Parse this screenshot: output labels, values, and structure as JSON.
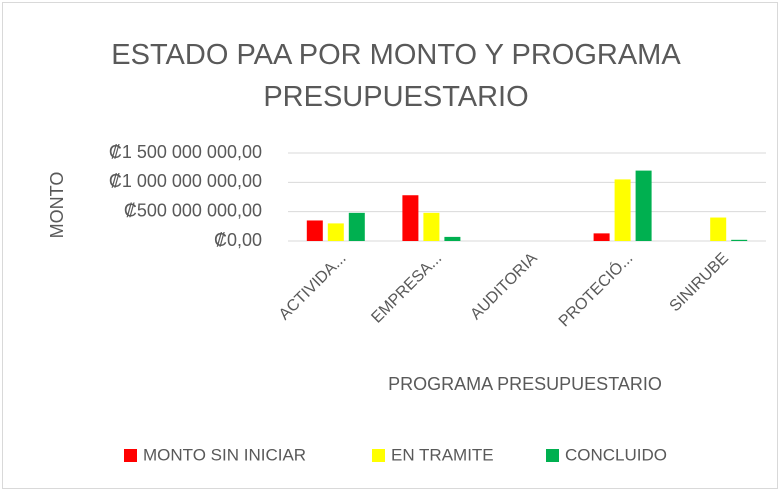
{
  "chart_data": {
    "type": "bar",
    "title": "ESTADO PAA POR MONTO Y PROGRAMA PRESUPUESTARIO",
    "x_label": "PROGRAMA PRESUPUESTARIO",
    "y_label": "MONTO",
    "categories": [
      "ACTIVIDA...",
      "EMPRESA...",
      "AUDITORIA",
      "PROTECIÓ...",
      "SINIRUBE"
    ],
    "series": [
      {
        "name": "MONTO SIN INICIAR",
        "color": "#ff0000",
        "values": [
          350000000,
          780000000,
          0,
          130000000,
          0
        ]
      },
      {
        "name": "EN TRAMITE",
        "color": "#ffff00",
        "values": [
          300000000,
          480000000,
          0,
          1050000000,
          400000000
        ]
      },
      {
        "name": "CONCLUIDO",
        "color": "#00b050",
        "values": [
          480000000,
          70000000,
          0,
          1200000000,
          20000000
        ]
      }
    ],
    "ylim": [
      0,
      1500000000
    ],
    "yticks": [
      {
        "value": 0,
        "label": "₡0,00"
      },
      {
        "value": 500000000,
        "label": "₡500 000 000,00"
      },
      {
        "value": 1000000000,
        "label": "₡1 000 000 000,00"
      },
      {
        "value": 1500000000,
        "label": "₡1 500 000 000,00"
      }
    ],
    "grid": true,
    "legend": "bottom"
  }
}
